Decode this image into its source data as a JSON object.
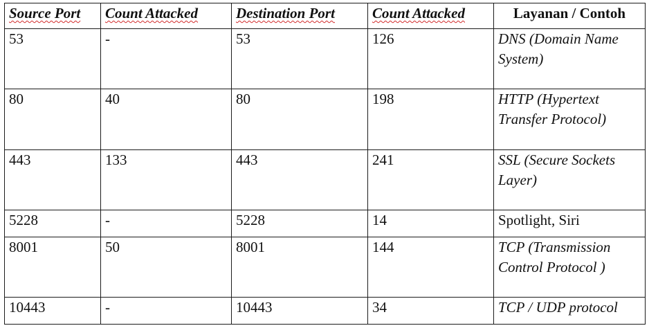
{
  "headers": [
    "Source Port",
    "Count Attacked",
    "Destination Port",
    "Count Attacked",
    "Layanan / Contoh"
  ],
  "rows": [
    {
      "source_port": "53",
      "count_src": "-",
      "dest_port": "53",
      "count_dst": "126",
      "service": "DNS (Domain Name System)"
    },
    {
      "source_port": "80",
      "count_src": "40",
      "dest_port": "80",
      "count_dst": "198",
      "service": "HTTP (Hypertext Transfer Protocol)"
    },
    {
      "source_port": "443",
      "count_src": "133",
      "dest_port": "443",
      "count_dst": "241",
      "service": "SSL (Secure Sockets Layer)"
    },
    {
      "source_port": "5228",
      "count_src": "-",
      "dest_port": "5228",
      "count_dst": "14",
      "service": "Spotlight, Siri"
    },
    {
      "source_port": "8001",
      "count_src": "50",
      "dest_port": "8001",
      "count_dst": "144",
      "service": "TCP (Transmission Control Protocol )"
    },
    {
      "source_port": "10443",
      "count_src": "-",
      "dest_port": "10443",
      "count_dst": "34",
      "service": "TCP / UDP protocol"
    }
  ],
  "style": {
    "border_color": "#1a1a1a",
    "spellcheck_underline_color": "#d22a2a"
  }
}
